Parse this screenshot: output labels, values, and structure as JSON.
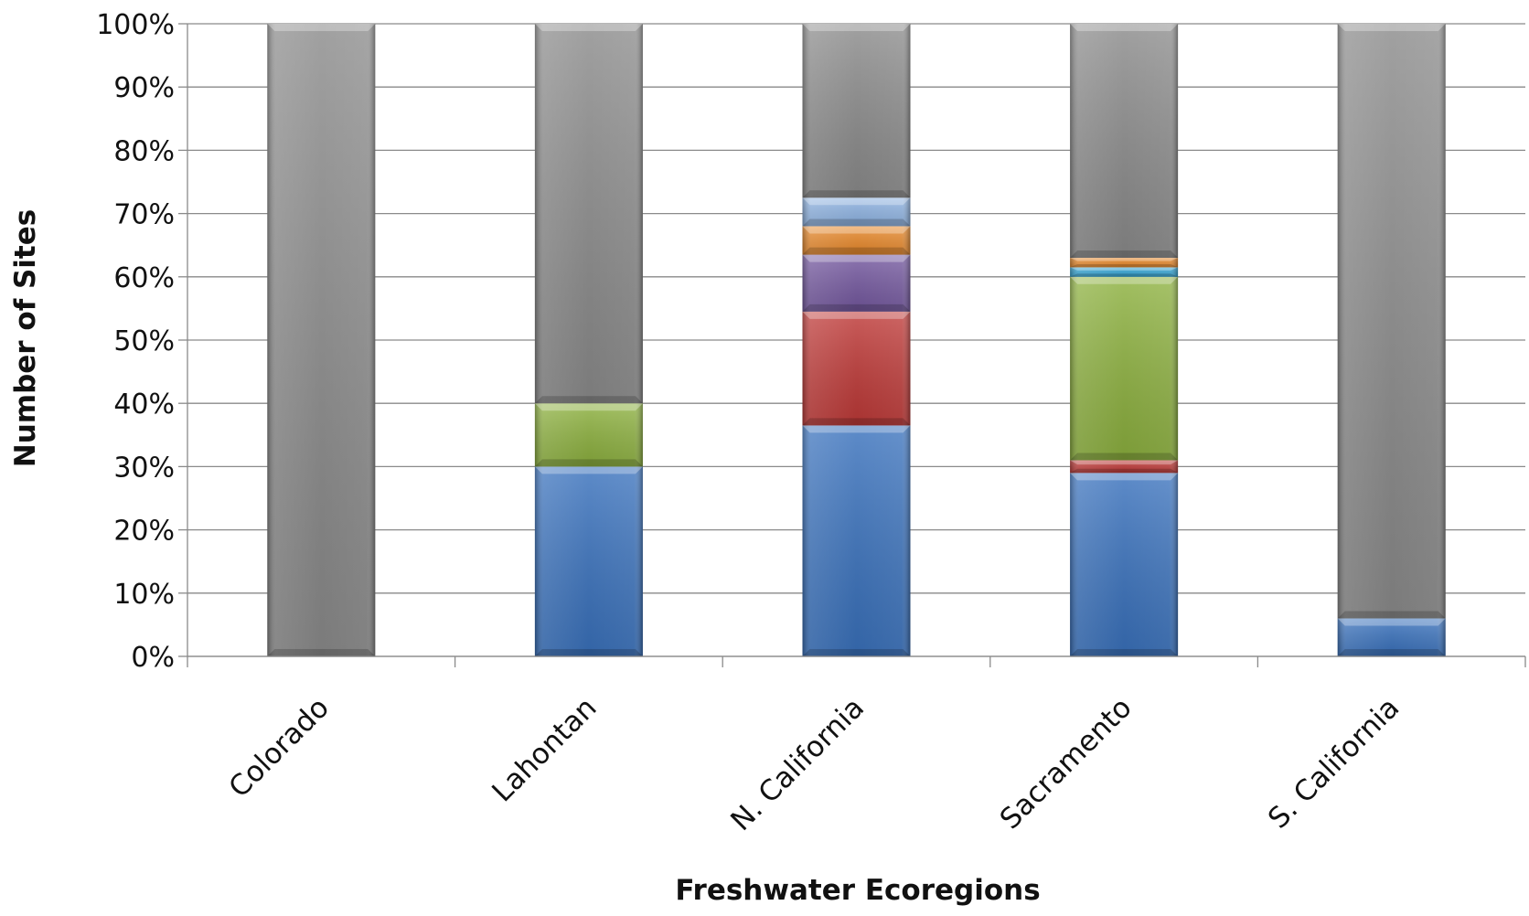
{
  "chart_data": {
    "type": "bar",
    "stacked": true,
    "normalized": true,
    "title": "",
    "xlabel": "Freshwater Ecoregions",
    "ylabel": "Number of Sites",
    "ylim": [
      0,
      100
    ],
    "yticks": [
      "0%",
      "10%",
      "20%",
      "30%",
      "40%",
      "50%",
      "60%",
      "70%",
      "80%",
      "90%",
      "100%"
    ],
    "grid": true,
    "legend": "none",
    "categories": [
      "Colorado",
      "Lahontan",
      "N. California",
      "Sacramento",
      "S. California"
    ],
    "series": [
      {
        "color": "#3a72bd",
        "values": [
          0,
          30,
          36.5,
          29,
          6
        ]
      },
      {
        "color": "#bf3a38",
        "values": [
          0,
          0,
          18,
          2,
          0
        ]
      },
      {
        "color": "#8db13f",
        "values": [
          0,
          10,
          0,
          29,
          0
        ]
      },
      {
        "color": "#36a7d6",
        "values": [
          0,
          0,
          0,
          1.5,
          0
        ]
      },
      {
        "color": "#7559a0",
        "values": [
          0,
          0,
          9,
          0,
          0
        ]
      },
      {
        "color": "#e98a2c",
        "values": [
          0,
          0,
          4.5,
          1.5,
          0
        ]
      },
      {
        "color": "#8fb4e3",
        "values": [
          0,
          0,
          4.5,
          0,
          0
        ]
      },
      {
        "color": "#8c8c8c",
        "values": [
          100,
          60,
          27.5,
          37,
          94
        ]
      }
    ]
  }
}
